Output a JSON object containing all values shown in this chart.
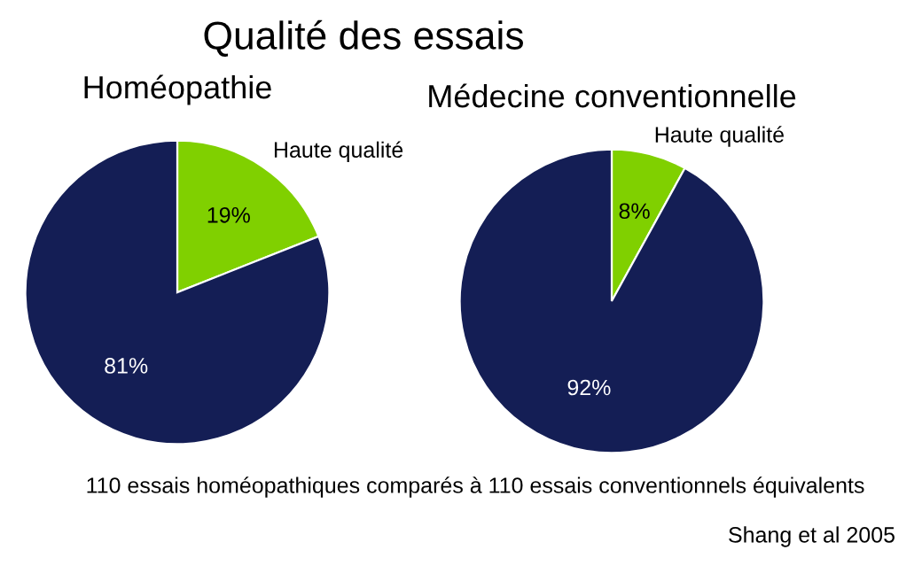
{
  "chart_data": [
    {
      "type": "other",
      "title": "Qualité des essais",
      "annotations": [
        "110 essais homéopathiques comparés à 110 essais conventionnels équivalents",
        "Shang et al 2005"
      ]
    },
    {
      "type": "pie",
      "title": "Homéopathie",
      "categories": [
        "Haute qualité",
        null
      ],
      "values": [
        19,
        81
      ],
      "colors": [
        "#80d000",
        "#141e55"
      ],
      "value_labels": [
        "19%",
        "81%"
      ]
    },
    {
      "type": "pie",
      "title": "Médecine conventionnelle",
      "categories": [
        "Haute qualité",
        null
      ],
      "values": [
        8,
        92
      ],
      "colors": [
        "#80d000",
        "#141e55"
      ],
      "value_labels": [
        "8%",
        "92%"
      ]
    }
  ]
}
